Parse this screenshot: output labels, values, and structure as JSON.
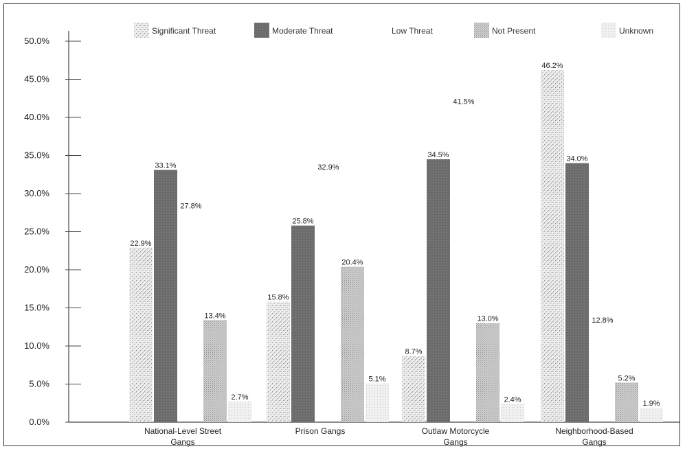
{
  "chart_data": {
    "type": "bar",
    "title": "",
    "xlabel": "",
    "ylabel": "",
    "ylim": [
      0,
      50
    ],
    "y_ticks": [
      "0.0%",
      "5.0%",
      "10.0%",
      "15.0%",
      "20.0%",
      "25.0%",
      "30.0%",
      "35.0%",
      "40.0%",
      "45.0%",
      "50.0%"
    ],
    "categories": [
      [
        "National-Level Street",
        "Gangs"
      ],
      [
        "Prison Gangs"
      ],
      [
        "Outlaw Motorcycle",
        "Gangs"
      ],
      [
        "Neighborhood-Based",
        "Gangs"
      ]
    ],
    "legend_position": "top",
    "series": [
      {
        "name": "Significant Threat",
        "color": "#d9d9d9",
        "pattern": "speckled-light",
        "values": [
          22.9,
          15.8,
          8.7,
          46.2
        ],
        "labels": [
          "22.9%",
          "15.8%",
          "8.7%",
          "46.2%"
        ]
      },
      {
        "name": "Moderate Threat",
        "color": "#6e6e6e",
        "pattern": "solid-dark",
        "values": [
          33.1,
          25.8,
          34.5,
          34.0
        ],
        "labels": [
          "33.1%",
          "25.8%",
          "34.5%",
          "34.0%"
        ]
      },
      {
        "name": "Low Threat",
        "color": "#ffffff",
        "pattern": "none",
        "values": [
          27.8,
          32.9,
          41.5,
          12.8
        ],
        "labels": [
          "27.8%",
          "32.9%",
          "41.5%",
          "12.8%"
        ]
      },
      {
        "name": "Not Present",
        "color": "#bdbdbd",
        "pattern": "dotted-grey",
        "values": [
          13.4,
          20.4,
          13.0,
          5.2
        ],
        "labels": [
          "13.4%",
          "20.4%",
          "13.0%",
          "5.2%"
        ]
      },
      {
        "name": "Unknown",
        "color": "#e6e6e6",
        "pattern": "faint",
        "values": [
          2.7,
          5.1,
          2.4,
          1.9
        ],
        "labels": [
          "2.7%",
          "5.1%",
          "2.4%",
          "1.9%"
        ]
      }
    ]
  }
}
